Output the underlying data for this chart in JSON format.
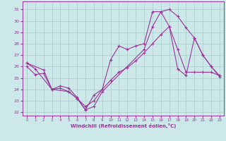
{
  "xlabel": "Windchill (Refroidissement éolien,°C)",
  "bg_color": "#cce8e8",
  "line_color": "#993399",
  "grid_color": "#aacccc",
  "x_ticks": [
    0,
    1,
    2,
    3,
    4,
    5,
    6,
    7,
    8,
    9,
    10,
    11,
    12,
    13,
    14,
    15,
    16,
    17,
    18,
    19,
    20,
    21,
    22,
    23
  ],
  "y_ticks": [
    22,
    23,
    24,
    25,
    26,
    27,
    28,
    29,
    30,
    31
  ],
  "ylim": [
    21.7,
    31.7
  ],
  "xlim": [
    -0.5,
    23.5
  ],
  "line1": {
    "x": [
      0,
      1,
      3,
      4,
      5,
      6,
      7,
      8,
      9,
      10,
      11,
      12,
      13,
      14,
      15,
      16,
      17,
      18,
      19,
      20,
      21,
      22,
      23
    ],
    "y": [
      26.3,
      25.8,
      24.0,
      24.3,
      24.1,
      23.3,
      22.2,
      23.5,
      24.0,
      26.6,
      27.8,
      27.5,
      27.8,
      28.0,
      30.8,
      30.8,
      31.0,
      30.4,
      29.4,
      28.5,
      27.0,
      26.0,
      25.2
    ]
  },
  "line2": {
    "x": [
      0,
      2,
      3,
      5,
      6,
      7,
      8,
      9,
      14,
      15,
      16,
      17,
      18,
      19,
      20,
      21,
      22,
      23
    ],
    "y": [
      26.3,
      25.7,
      24.0,
      23.8,
      23.2,
      22.2,
      22.5,
      23.8,
      27.5,
      29.5,
      30.8,
      29.5,
      25.8,
      25.2,
      28.5,
      27.0,
      26.0,
      25.1
    ]
  },
  "line3": {
    "x": [
      0,
      1,
      2,
      3,
      4,
      5,
      6,
      7,
      8,
      9,
      10,
      11,
      12,
      13,
      14,
      15,
      16,
      17,
      18,
      19,
      20,
      21,
      22,
      23
    ],
    "y": [
      26.0,
      25.3,
      25.4,
      24.0,
      24.1,
      23.8,
      23.2,
      22.5,
      23.0,
      24.0,
      24.8,
      25.5,
      25.9,
      26.5,
      27.2,
      28.0,
      28.8,
      29.5,
      27.5,
      25.5,
      25.5,
      25.5,
      25.5,
      25.2
    ]
  }
}
